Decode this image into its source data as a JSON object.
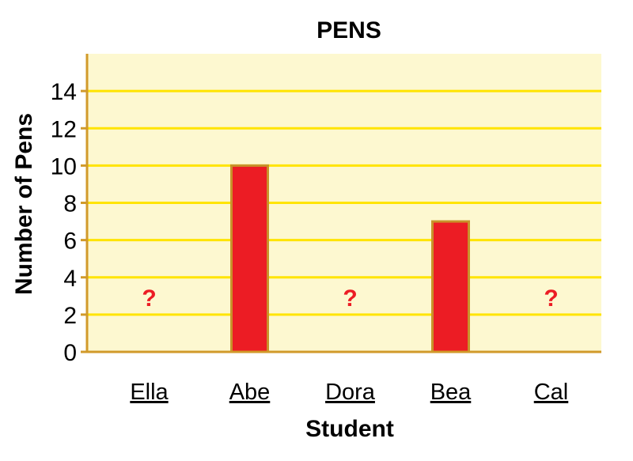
{
  "chart_data": {
    "type": "bar",
    "title": "PENS",
    "xlabel": "Student",
    "ylabel": "Number of Pens",
    "categories": [
      "Ella",
      "Abe",
      "Dora",
      "Bea",
      "Cal"
    ],
    "values": [
      null,
      10,
      null,
      7,
      null
    ],
    "unknown_marker": "?",
    "ylim": [
      0,
      16
    ],
    "yticks": [
      0,
      2,
      4,
      6,
      8,
      10,
      12,
      14
    ],
    "grid": true,
    "colors": {
      "bar": "#ec1c24",
      "bar_edge": "#c8922a",
      "plot_bg": "#fdf8d0",
      "grid": "#ffe400",
      "axis": "#d19a2a",
      "unknown_marker": "#ec1c24"
    }
  }
}
